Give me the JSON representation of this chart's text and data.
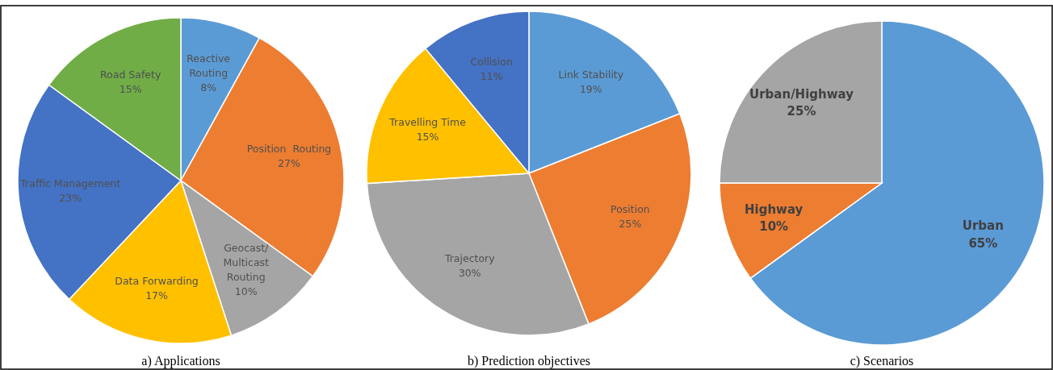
{
  "chart_data": [
    {
      "type": "pie",
      "title": "a) Applications",
      "categories": [
        "Reactive\nRouting",
        "Position  Routing",
        "Geocast/\nMulticast\nRouting",
        "Data Forwarding",
        "Traffic Management",
        "Road Safety"
      ],
      "values": [
        8,
        27,
        10,
        17,
        23,
        15
      ],
      "value_labels": [
        "8%",
        "27%",
        "10%",
        "17%",
        "23%",
        "15%"
      ],
      "colors": [
        "#5b9bd5",
        "#ed7d31",
        "#a5a5a5",
        "#ffc000",
        "#4472c4",
        "#70ad47"
      ]
    },
    {
      "type": "pie",
      "title": "b) Prediction objectives",
      "categories": [
        "Link Stability",
        "Position",
        "Trajectory",
        "Travelling Time",
        "Collision"
      ],
      "values": [
        19,
        25,
        30,
        15,
        11
      ],
      "value_labels": [
        "19%",
        "25%",
        "30%",
        "15%",
        "11%"
      ],
      "colors": [
        "#5b9bd5",
        "#ed7d31",
        "#a5a5a5",
        "#ffc000",
        "#4472c4"
      ]
    },
    {
      "type": "pie",
      "title": "c) Scenarios",
      "categories": [
        "Urban",
        "Highway",
        "Urban/Highway"
      ],
      "values": [
        65,
        10,
        25
      ],
      "value_labels": [
        "65%",
        "10%",
        "25%"
      ],
      "colors": [
        "#5b9bd5",
        "#ed7d31",
        "#a5a5a5"
      ]
    }
  ]
}
